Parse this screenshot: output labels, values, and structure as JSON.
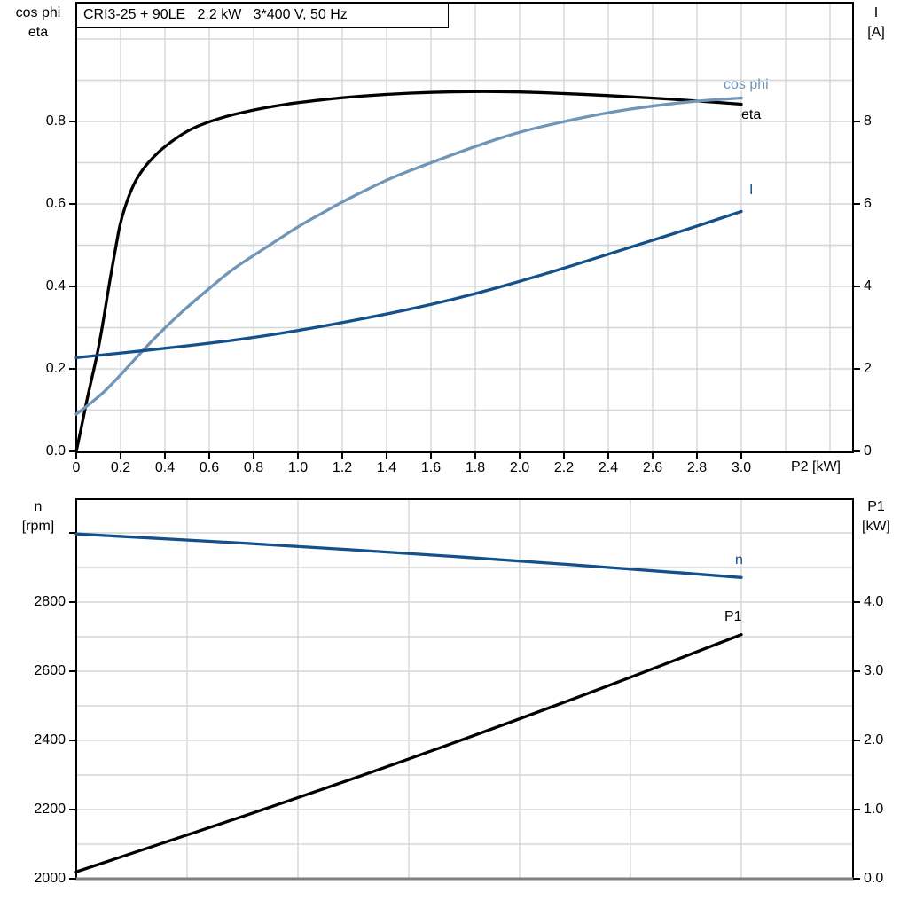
{
  "colors": {
    "black": "#000000",
    "dark_blue": "#14508c",
    "light_blue": "#6f96b8",
    "grid": "#d4d6d8",
    "frame": "#000000",
    "bottom_axis_gray": "#7f7f7f",
    "background": "#ffffff"
  },
  "title_box": "CRI3-25 + 90LE   2.2 kW   3*400 V, 50 Hz",
  "chart_data": [
    {
      "type": "line",
      "title": "CRI3-25 + 90LE  2.2 kW  3*400 V, 50 Hz",
      "xlabel": "P2 [kW]",
      "xlim": [
        0,
        3.5
      ],
      "grid": "on",
      "legend_position": "curve-end-labels",
      "left_axis": {
        "title_lines": [
          "cos phi",
          "eta"
        ],
        "range": [
          0,
          1.09
        ],
        "ticks": [
          {
            "label": "0.0",
            "v": 0
          },
          {
            "label": "0.2",
            "v": 0.2
          },
          {
            "label": "0.4",
            "v": 0.4
          },
          {
            "label": "0.6",
            "v": 0.6
          },
          {
            "label": "0.8",
            "v": 0.8
          }
        ]
      },
      "right_axis": {
        "title_lines": [
          "I",
          "[A]"
        ],
        "range": [
          0,
          10.9
        ],
        "ticks": [
          {
            "label": "0",
            "v": 0
          },
          {
            "label": "2",
            "v": 2
          },
          {
            "label": "4",
            "v": 4
          },
          {
            "label": "6",
            "v": 6
          },
          {
            "label": "8",
            "v": 8
          }
        ]
      },
      "x_ticks": [
        {
          "label": "0",
          "v": 0
        },
        {
          "label": "0.2",
          "v": 0.2
        },
        {
          "label": "0.4",
          "v": 0.4
        },
        {
          "label": "0.6",
          "v": 0.6
        },
        {
          "label": "0.8",
          "v": 0.8
        },
        {
          "label": "1.0",
          "v": 1.0
        },
        {
          "label": "1.2",
          "v": 1.2
        },
        {
          "label": "1.4",
          "v": 1.4
        },
        {
          "label": "1.6",
          "v": 1.6
        },
        {
          "label": "1.8",
          "v": 1.8
        },
        {
          "label": "2.0",
          "v": 2.0
        },
        {
          "label": "2.2",
          "v": 2.2
        },
        {
          "label": "2.4",
          "v": 2.4
        },
        {
          "label": "2.6",
          "v": 2.6
        },
        {
          "label": "2.8",
          "v": 2.8
        },
        {
          "label": "3.0",
          "v": 3.0
        }
      ],
      "series": [
        {
          "name": "eta",
          "axis": "left",
          "color": "#000000",
          "points": [
            [
              0,
              0
            ],
            [
              0.02,
              0.05
            ],
            [
              0.05,
              0.13
            ],
            [
              0.08,
              0.2
            ],
            [
              0.1,
              0.25
            ],
            [
              0.12,
              0.31
            ],
            [
              0.15,
              0.41
            ],
            [
              0.18,
              0.5
            ],
            [
              0.2,
              0.56
            ],
            [
              0.25,
              0.64
            ],
            [
              0.3,
              0.685
            ],
            [
              0.35,
              0.715
            ],
            [
              0.4,
              0.74
            ],
            [
              0.5,
              0.778
            ],
            [
              0.6,
              0.8
            ],
            [
              0.7,
              0.816
            ],
            [
              0.8,
              0.828
            ],
            [
              0.9,
              0.838
            ],
            [
              1,
              0.846
            ],
            [
              1.2,
              0.858
            ],
            [
              1.4,
              0.866
            ],
            [
              1.6,
              0.871
            ],
            [
              1.8,
              0.873
            ],
            [
              2,
              0.872
            ],
            [
              2.2,
              0.868
            ],
            [
              2.4,
              0.863
            ],
            [
              2.6,
              0.857
            ],
            [
              2.8,
              0.85
            ],
            [
              3,
              0.842
            ]
          ]
        },
        {
          "name": "cos phi",
          "axis": "left",
          "color": "#6f96b8",
          "points": [
            [
              0,
              0.09
            ],
            [
              0.1,
              0.13
            ],
            [
              0.2,
              0.185
            ],
            [
              0.3,
              0.245
            ],
            [
              0.4,
              0.3
            ],
            [
              0.5,
              0.35
            ],
            [
              0.6,
              0.395
            ],
            [
              0.7,
              0.44
            ],
            [
              0.8,
              0.475
            ],
            [
              0.9,
              0.51
            ],
            [
              1,
              0.545
            ],
            [
              1.1,
              0.575
            ],
            [
              1.2,
              0.605
            ],
            [
              1.3,
              0.632
            ],
            [
              1.4,
              0.658
            ],
            [
              1.5,
              0.68
            ],
            [
              1.6,
              0.7
            ],
            [
              1.8,
              0.74
            ],
            [
              2,
              0.775
            ],
            [
              2.2,
              0.8
            ],
            [
              2.4,
              0.822
            ],
            [
              2.6,
              0.838
            ],
            [
              2.8,
              0.85
            ],
            [
              3,
              0.857
            ]
          ]
        },
        {
          "name": "I",
          "axis": "right",
          "color": "#14508c",
          "points": [
            [
              0,
              2.27
            ],
            [
              0.2,
              2.38
            ],
            [
              0.4,
              2.5
            ],
            [
              0.6,
              2.62
            ],
            [
              0.8,
              2.76
            ],
            [
              1,
              2.93
            ],
            [
              1.2,
              3.12
            ],
            [
              1.4,
              3.33
            ],
            [
              1.6,
              3.56
            ],
            [
              1.8,
              3.82
            ],
            [
              2,
              4.12
            ],
            [
              2.2,
              4.44
            ],
            [
              2.4,
              4.78
            ],
            [
              2.6,
              5.12
            ],
            [
              2.8,
              5.46
            ],
            [
              3,
              5.82
            ]
          ]
        }
      ]
    },
    {
      "type": "line",
      "title": "",
      "xlabel": "",
      "xlim": [
        0,
        3.5
      ],
      "grid": "on",
      "legend_position": "curve-end-labels",
      "left_axis": {
        "title_lines": [
          "n",
          "[rpm]"
        ],
        "range": [
          1890,
          3100
        ],
        "ticks": [
          {
            "label": "",
            "v": 3000
          },
          {
            "label": "2800",
            "v": 2800
          },
          {
            "label": "2600",
            "v": 2600
          },
          {
            "label": "2400",
            "v": 2400
          },
          {
            "label": "2200",
            "v": 2200
          },
          {
            "label": "2000",
            "v": 2000
          }
        ]
      },
      "right_axis": {
        "title_lines": [
          "P1",
          "[kW]"
        ],
        "range": [
          0,
          5.5
        ],
        "ticks": [
          {
            "label": "4.0",
            "v": 4.0
          },
          {
            "label": "3.0",
            "v": 3.0
          },
          {
            "label": "2.0",
            "v": 2.0
          },
          {
            "label": "1.0",
            "v": 1.0
          },
          {
            "label": "0.0",
            "v": 0.0
          }
        ]
      },
      "x_ticks": [],
      "series": [
        {
          "name": "n",
          "axis": "left",
          "color": "#14508c",
          "points": [
            [
              0,
              2997
            ],
            [
              0.5,
              2980
            ],
            [
              1,
              2961
            ],
            [
              1.5,
              2941
            ],
            [
              2,
              2919
            ],
            [
              2.5,
              2896
            ],
            [
              3,
              2871
            ]
          ]
        },
        {
          "name": "P1",
          "axis": "right",
          "color": "#000000",
          "points": [
            [
              0,
              0.1
            ],
            [
              0.5,
              0.63
            ],
            [
              1,
              1.17
            ],
            [
              1.5,
              1.73
            ],
            [
              2,
              2.31
            ],
            [
              2.5,
              2.91
            ],
            [
              3,
              3.53
            ]
          ]
        }
      ]
    }
  ]
}
